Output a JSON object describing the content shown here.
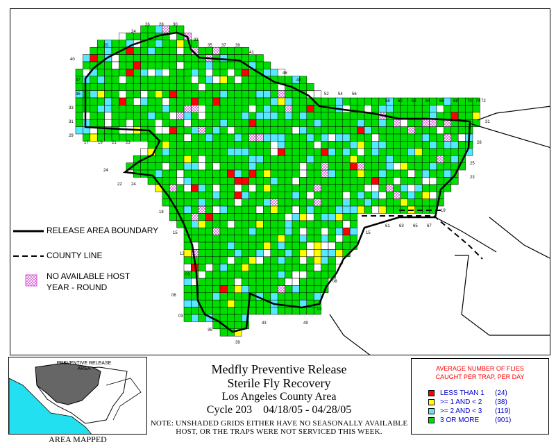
{
  "legend": {
    "boundary_label": "RELEASE AREA BOUNDARY",
    "county_label": "COUNTY LINE",
    "nohost_label_1": "NO AVAILABLE HOST",
    "nohost_label_2": "YEAR - ROUND"
  },
  "inset": {
    "label_1": "PREVENTIVE RELEASE",
    "label_2": "AREA",
    "caption": "AREA MAPPED"
  },
  "title": {
    "line1": "Medfly Preventive Release",
    "line2": "Sterile Fly Recovery",
    "line3": "Los Angeles County Area",
    "line4": "Cycle 203    04/18/05 - 04/28/05",
    "note1": "NOTE: UNSHADED GRIDS EITHER HAVE NO SEASONALLY AVAILABLE",
    "note2": "HOST, OR THE TRAPS WERE NOT SERVICED THIS WEEK."
  },
  "key": {
    "heading1": "AVERAGE NUMBER OF FLIES",
    "heading2": "CAUGHT PER TRAP, PER DAY",
    "items": [
      {
        "label": "LESS THAN 1",
        "count": "(24)",
        "color": "#ff0000"
      },
      {
        "label": ">= 1 AND < 2",
        "count": "(38)",
        "color": "#ffff00"
      },
      {
        "label": ">= 2 AND < 3",
        "count": "(119)",
        "color": "#55e8ff"
      },
      {
        "label": "3 OR MORE",
        "count": "(901)",
        "color": "#00dd00"
      }
    ]
  },
  "grid_labels": {
    "top": [
      "24",
      "26",
      "28",
      "30",
      "33",
      "35",
      "37",
      "39",
      "41",
      "20",
      "46",
      "48",
      "52",
      "54",
      "56",
      "58",
      "60",
      "62",
      "64",
      "66",
      "68",
      "70",
      "72",
      "74"
    ],
    "left": [
      "40",
      "37",
      "35",
      "33",
      "31",
      "29",
      "17",
      "19",
      "21",
      "23",
      "24",
      "22",
      "24",
      "18",
      "15",
      "12",
      "09",
      "06",
      "03"
    ],
    "right": [
      "31",
      "28",
      "25",
      "23",
      "19",
      "61",
      "63",
      "65",
      "67",
      "15",
      "08",
      "04",
      "49",
      "43",
      "39",
      "35"
    ]
  },
  "colors": {
    "green": "#00dd00",
    "cyan": "#55e8ff",
    "yellow": "#ffff00",
    "red": "#ff0000",
    "nohost": "#cc33cc",
    "inset_ocean": "#22e0f0",
    "inset_area": "#666666"
  }
}
